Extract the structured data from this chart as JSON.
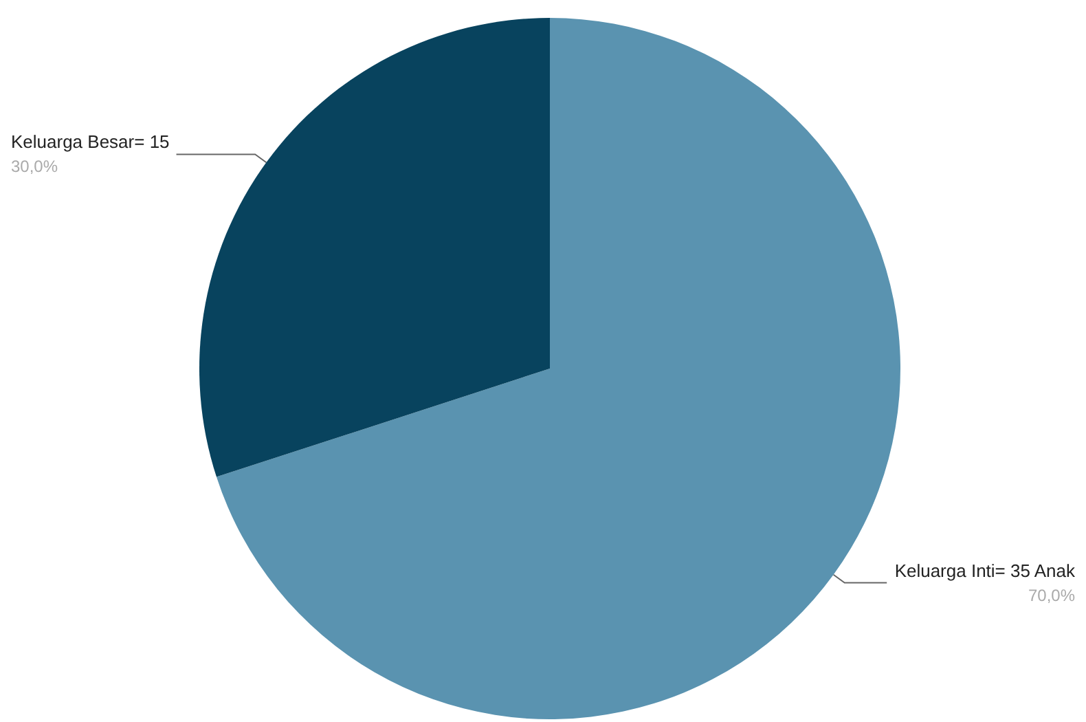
{
  "chart_data": {
    "type": "pie",
    "categories": [
      "Keluarga Inti= 35 Anak",
      "Keluarga Besar= 15"
    ],
    "values": [
      70,
      30
    ],
    "value_labels": [
      "70,0%",
      "30,0%"
    ],
    "colors": [
      "#5a93b0",
      "#08435e"
    ],
    "legend": false
  }
}
